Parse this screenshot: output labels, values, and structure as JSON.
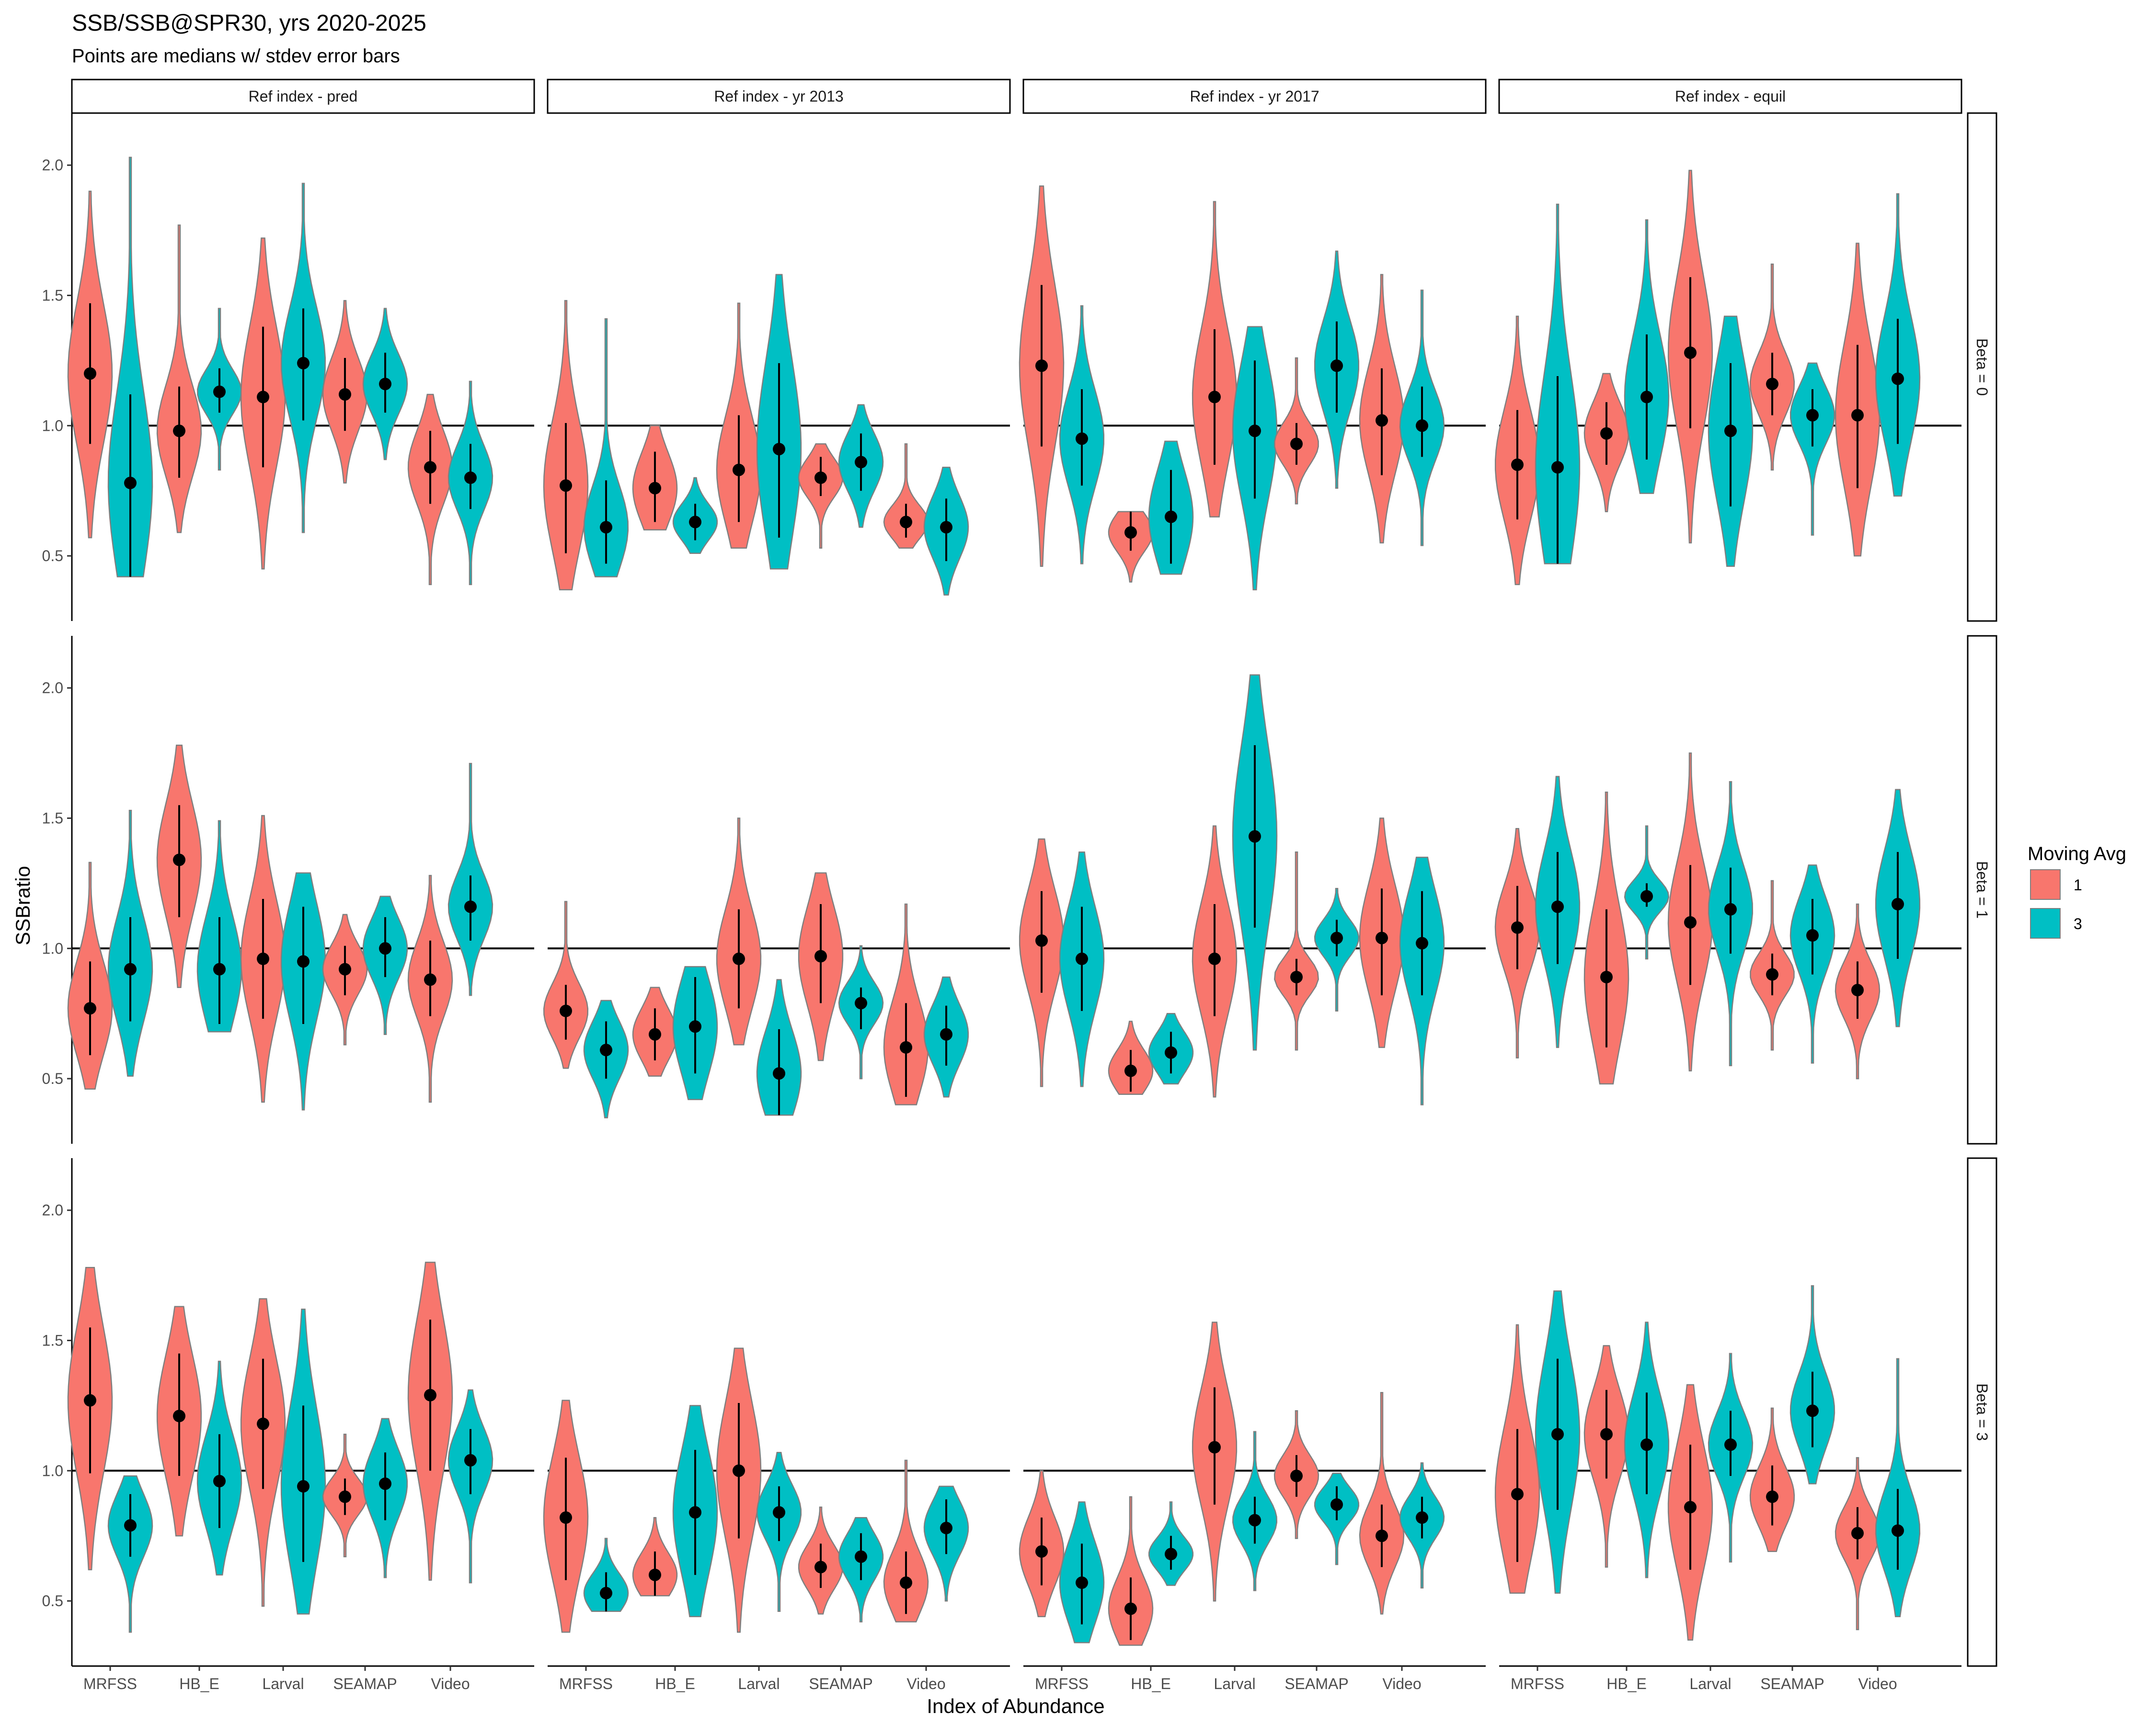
{
  "title": "SSB/SSB@SPR30, yrs 2020-2025",
  "subtitle": "Points are medians w/ stdev error bars",
  "colors": {
    "ma1": "#F8766D",
    "ma3": "#00BFC4",
    "violin_stroke": "#7f7f7f",
    "point": "#000000",
    "strip_border": "#000000"
  },
  "chart_data": {
    "type": "violin",
    "xlabel": "Index of Abundance",
    "ylabel": "SSBratio",
    "ylim": [
      0.25,
      2.2
    ],
    "yticks": [
      "0.5",
      "1.0",
      "1.5",
      "2.0"
    ],
    "ytick_values": [
      0.5,
      1.0,
      1.5,
      2.0
    ],
    "reference_line": 1.0,
    "categories": [
      "MRFSS",
      "HB_E",
      "Larval",
      "SEAMAP",
      "Video"
    ],
    "col_facets": [
      "Ref index - pred",
      "Ref index - yr 2013",
      "Ref index - yr 2017",
      "Ref index - equil"
    ],
    "row_facets": [
      "Beta = 0",
      "Beta = 1",
      "Beta = 3"
    ],
    "legend": {
      "title": "Moving Avg",
      "entries": [
        "1",
        "3"
      ]
    },
    "panels": [
      [
        [
          [
            [
              1.2,
              0.93,
              1.47,
              0.57,
              1.9
            ],
            [
              0.78,
              0.42,
              1.12,
              0.42,
              2.03
            ]
          ],
          [
            [
              0.98,
              0.8,
              1.15,
              0.59,
              1.77
            ],
            [
              1.13,
              1.05,
              1.22,
              0.83,
              1.45
            ]
          ],
          [
            [
              1.11,
              0.84,
              1.38,
              0.45,
              1.72
            ],
            [
              1.24,
              1.02,
              1.45,
              0.59,
              1.93
            ]
          ],
          [
            [
              1.12,
              0.98,
              1.26,
              0.78,
              1.48
            ],
            [
              1.16,
              1.05,
              1.28,
              0.87,
              1.45
            ]
          ],
          [
            [
              0.84,
              0.7,
              0.98,
              0.39,
              1.12
            ],
            [
              0.8,
              0.68,
              0.93,
              0.39,
              1.17
            ]
          ]
        ],
        [
          [
            [
              0.77,
              0.51,
              1.01,
              0.37,
              1.48
            ],
            [
              0.61,
              0.47,
              0.79,
              0.42,
              1.41
            ]
          ],
          [
            [
              0.76,
              0.63,
              0.9,
              0.6,
              1.0
            ],
            [
              0.63,
              0.56,
              0.7,
              0.51,
              0.8
            ]
          ],
          [
            [
              0.83,
              0.63,
              1.04,
              0.53,
              1.47
            ],
            [
              0.91,
              0.57,
              1.24,
              0.45,
              1.58
            ]
          ],
          [
            [
              0.8,
              0.73,
              0.88,
              0.53,
              0.93
            ],
            [
              0.86,
              0.75,
              0.97,
              0.61,
              1.08
            ]
          ],
          [
            [
              0.63,
              0.57,
              0.7,
              0.53,
              0.93
            ],
            [
              0.61,
              0.48,
              0.72,
              0.35,
              0.84
            ]
          ]
        ],
        [
          [
            [
              1.23,
              0.92,
              1.54,
              0.46,
              1.92
            ],
            [
              0.95,
              0.77,
              1.14,
              0.47,
              1.46
            ]
          ],
          [
            [
              0.59,
              0.52,
              0.67,
              0.4,
              0.67
            ],
            [
              0.65,
              0.47,
              0.83,
              0.43,
              0.94
            ]
          ],
          [
            [
              1.11,
              0.85,
              1.37,
              0.65,
              1.86
            ],
            [
              0.98,
              0.72,
              1.25,
              0.37,
              1.38
            ]
          ],
          [
            [
              0.93,
              0.85,
              1.01,
              0.7,
              1.26
            ],
            [
              1.23,
              1.05,
              1.4,
              0.76,
              1.67
            ]
          ],
          [
            [
              1.02,
              0.81,
              1.22,
              0.55,
              1.58
            ],
            [
              1.0,
              0.88,
              1.15,
              0.54,
              1.52
            ]
          ]
        ],
        [
          [
            [
              0.85,
              0.64,
              1.06,
              0.39,
              1.42
            ],
            [
              0.84,
              0.47,
              1.19,
              0.47,
              1.85
            ]
          ],
          [
            [
              0.97,
              0.85,
              1.09,
              0.67,
              1.2
            ],
            [
              1.11,
              0.87,
              1.35,
              0.74,
              1.79
            ]
          ],
          [
            [
              1.28,
              0.99,
              1.57,
              0.55,
              1.98
            ],
            [
              0.98,
              0.69,
              1.24,
              0.46,
              1.42
            ]
          ],
          [
            [
              1.16,
              1.04,
              1.28,
              0.83,
              1.62
            ],
            [
              1.04,
              0.92,
              1.14,
              0.58,
              1.24
            ]
          ],
          [
            [
              1.04,
              0.76,
              1.31,
              0.5,
              1.7
            ],
            [
              1.18,
              0.93,
              1.41,
              0.73,
              1.89
            ]
          ]
        ]
      ],
      [
        [
          [
            [
              0.77,
              0.59,
              0.95,
              0.46,
              1.33
            ],
            [
              0.92,
              0.72,
              1.12,
              0.51,
              1.53
            ]
          ],
          [
            [
              1.34,
              1.12,
              1.55,
              0.85,
              1.78
            ],
            [
              0.92,
              0.71,
              1.12,
              0.68,
              1.49
            ]
          ],
          [
            [
              0.96,
              0.73,
              1.19,
              0.41,
              1.51
            ],
            [
              0.95,
              0.71,
              1.16,
              0.38,
              1.29
            ]
          ],
          [
            [
              0.92,
              0.82,
              1.01,
              0.63,
              1.13
            ],
            [
              1.0,
              0.89,
              1.12,
              0.67,
              1.2
            ]
          ],
          [
            [
              0.88,
              0.74,
              1.03,
              0.41,
              1.28
            ],
            [
              1.16,
              1.03,
              1.28,
              0.82,
              1.71
            ]
          ]
        ],
        [
          [
            [
              0.76,
              0.65,
              0.86,
              0.54,
              1.18
            ],
            [
              0.61,
              0.5,
              0.72,
              0.35,
              0.8
            ]
          ],
          [
            [
              0.67,
              0.57,
              0.77,
              0.51,
              0.85
            ],
            [
              0.7,
              0.52,
              0.89,
              0.42,
              0.93
            ]
          ],
          [
            [
              0.96,
              0.77,
              1.15,
              0.63,
              1.5
            ],
            [
              0.52,
              0.36,
              0.69,
              0.36,
              0.88
            ]
          ],
          [
            [
              0.97,
              0.79,
              1.17,
              0.57,
              1.29
            ],
            [
              0.79,
              0.69,
              0.85,
              0.5,
              1.01
            ]
          ],
          [
            [
              0.62,
              0.43,
              0.79,
              0.4,
              1.17
            ],
            [
              0.67,
              0.55,
              0.78,
              0.43,
              0.89
            ]
          ]
        ],
        [
          [
            [
              1.03,
              0.83,
              1.22,
              0.47,
              1.42
            ],
            [
              0.96,
              0.76,
              1.16,
              0.47,
              1.37
            ]
          ],
          [
            [
              0.53,
              0.45,
              0.61,
              0.44,
              0.72
            ],
            [
              0.6,
              0.52,
              0.68,
              0.48,
              0.75
            ]
          ],
          [
            [
              0.96,
              0.74,
              1.17,
              0.43,
              1.47
            ],
            [
              1.43,
              1.08,
              1.78,
              0.61,
              2.05
            ]
          ],
          [
            [
              0.89,
              0.82,
              0.96,
              0.61,
              1.37
            ],
            [
              1.04,
              0.97,
              1.11,
              0.76,
              1.23
            ]
          ],
          [
            [
              1.04,
              0.82,
              1.23,
              0.62,
              1.5
            ],
            [
              1.02,
              0.82,
              1.22,
              0.4,
              1.35
            ]
          ]
        ],
        [
          [
            [
              1.08,
              0.92,
              1.24,
              0.58,
              1.46
            ],
            [
              1.16,
              0.94,
              1.37,
              0.62,
              1.66
            ]
          ],
          [
            [
              0.89,
              0.62,
              1.15,
              0.48,
              1.6
            ],
            [
              1.2,
              1.16,
              1.25,
              0.96,
              1.47
            ]
          ],
          [
            [
              1.1,
              0.86,
              1.32,
              0.53,
              1.75
            ],
            [
              1.15,
              0.98,
              1.31,
              0.55,
              1.64
            ]
          ],
          [
            [
              0.9,
              0.82,
              0.98,
              0.61,
              1.26
            ],
            [
              1.05,
              0.9,
              1.19,
              0.56,
              1.32
            ]
          ],
          [
            [
              0.84,
              0.73,
              0.95,
              0.5,
              1.17
            ],
            [
              1.17,
              0.96,
              1.37,
              0.7,
              1.61
            ]
          ]
        ]
      ],
      [
        [
          [
            [
              1.27,
              0.99,
              1.55,
              0.62,
              1.78
            ],
            [
              0.79,
              0.67,
              0.91,
              0.38,
              0.98
            ]
          ],
          [
            [
              1.21,
              0.98,
              1.45,
              0.75,
              1.63
            ],
            [
              0.96,
              0.78,
              1.14,
              0.6,
              1.42
            ]
          ],
          [
            [
              1.18,
              0.93,
              1.43,
              0.48,
              1.66
            ],
            [
              0.94,
              0.65,
              1.25,
              0.45,
              1.62
            ]
          ],
          [
            [
              0.9,
              0.83,
              0.97,
              0.67,
              1.14
            ],
            [
              0.95,
              0.81,
              1.07,
              0.59,
              1.2
            ]
          ],
          [
            [
              1.29,
              1.0,
              1.58,
              0.58,
              1.8
            ],
            [
              1.04,
              0.91,
              1.16,
              0.57,
              1.31
            ]
          ]
        ],
        [
          [
            [
              0.82,
              0.58,
              1.05,
              0.38,
              1.27
            ],
            [
              0.53,
              0.46,
              0.61,
              0.46,
              0.74
            ]
          ],
          [
            [
              0.6,
              0.52,
              0.69,
              0.52,
              0.82
            ],
            [
              0.84,
              0.6,
              1.08,
              0.44,
              1.25
            ]
          ],
          [
            [
              1.0,
              0.74,
              1.26,
              0.38,
              1.47
            ],
            [
              0.84,
              0.73,
              0.94,
              0.46,
              1.07
            ]
          ],
          [
            [
              0.63,
              0.55,
              0.72,
              0.45,
              0.86
            ],
            [
              0.67,
              0.58,
              0.76,
              0.42,
              0.82
            ]
          ],
          [
            [
              0.57,
              0.45,
              0.69,
              0.42,
              1.04
            ],
            [
              0.78,
              0.68,
              0.89,
              0.5,
              0.94
            ]
          ]
        ],
        [
          [
            [
              0.69,
              0.56,
              0.82,
              0.44,
              1.0
            ],
            [
              0.57,
              0.41,
              0.72,
              0.34,
              0.88
            ]
          ],
          [
            [
              0.47,
              0.35,
              0.59,
              0.33,
              0.9
            ],
            [
              0.68,
              0.62,
              0.75,
              0.56,
              0.88
            ]
          ],
          [
            [
              1.09,
              0.87,
              1.32,
              0.5,
              1.57
            ],
            [
              0.81,
              0.72,
              0.9,
              0.54,
              1.15
            ]
          ],
          [
            [
              0.98,
              0.9,
              1.06,
              0.74,
              1.23
            ],
            [
              0.87,
              0.81,
              0.94,
              0.64,
              0.99
            ]
          ],
          [
            [
              0.75,
              0.63,
              0.87,
              0.45,
              1.3
            ],
            [
              0.82,
              0.74,
              0.9,
              0.55,
              1.03
            ]
          ]
        ],
        [
          [
            [
              0.91,
              0.65,
              1.16,
              0.53,
              1.56
            ],
            [
              1.14,
              0.85,
              1.43,
              0.53,
              1.69
            ]
          ],
          [
            [
              1.14,
              0.97,
              1.31,
              0.63,
              1.48
            ],
            [
              1.1,
              0.91,
              1.3,
              0.59,
              1.57
            ]
          ],
          [
            [
              0.86,
              0.62,
              1.1,
              0.35,
              1.33
            ],
            [
              1.1,
              0.98,
              1.23,
              0.65,
              1.45
            ]
          ],
          [
            [
              0.9,
              0.79,
              1.02,
              0.69,
              1.24
            ],
            [
              1.23,
              1.09,
              1.38,
              0.95,
              1.71
            ]
          ],
          [
            [
              0.76,
              0.66,
              0.86,
              0.39,
              1.05
            ],
            [
              0.77,
              0.62,
              0.93,
              0.44,
              1.43
            ]
          ]
        ]
      ]
    ]
  }
}
